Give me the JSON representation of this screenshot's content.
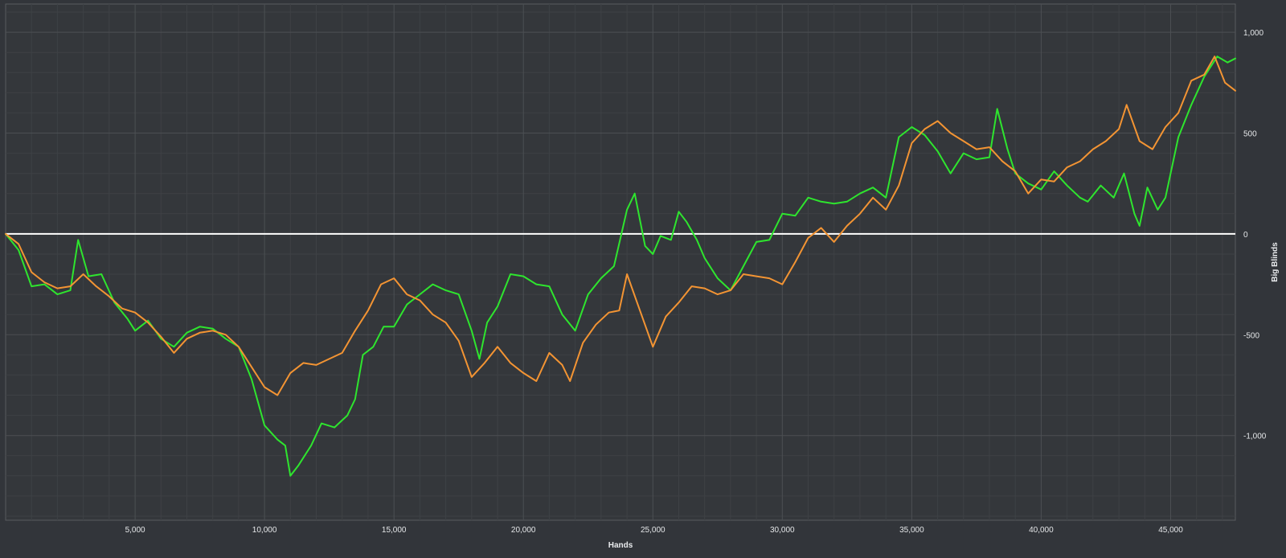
{
  "chart_data": {
    "type": "line",
    "title": "",
    "xlabel": "Hands",
    "ylabel": "Big Blinds",
    "xlim": [
      0,
      47500
    ],
    "ylim": [
      -1420,
      1140
    ],
    "x_ticks": [
      5000,
      10000,
      15000,
      20000,
      25000,
      30000,
      35000,
      40000,
      45000
    ],
    "x_tick_labels": [
      "5,000",
      "10,000",
      "15,000",
      "20,000",
      "25,000",
      "30,000",
      "35,000",
      "40,000",
      "45,000"
    ],
    "y_ticks": [
      1000,
      500,
      0,
      -500,
      -1000
    ],
    "y_tick_labels": [
      "1,000",
      "500",
      "0",
      "-500",
      "-1,000"
    ],
    "grid": true,
    "zero_line": true,
    "legend": "none",
    "series": [
      {
        "color": "#2ee52e",
        "points": [
          [
            0,
            0
          ],
          [
            500,
            -80
          ],
          [
            1000,
            -260
          ],
          [
            1500,
            -250
          ],
          [
            2000,
            -300
          ],
          [
            2500,
            -280
          ],
          [
            2800,
            -30
          ],
          [
            3200,
            -210
          ],
          [
            3700,
            -200
          ],
          [
            4200,
            -340
          ],
          [
            4700,
            -420
          ],
          [
            5000,
            -480
          ],
          [
            5500,
            -430
          ],
          [
            6000,
            -520
          ],
          [
            6500,
            -560
          ],
          [
            7000,
            -490
          ],
          [
            7500,
            -460
          ],
          [
            8000,
            -470
          ],
          [
            8500,
            -520
          ],
          [
            9000,
            -560
          ],
          [
            9500,
            -720
          ],
          [
            10000,
            -950
          ],
          [
            10500,
            -1020
          ],
          [
            10800,
            -1050
          ],
          [
            11000,
            -1200
          ],
          [
            11300,
            -1150
          ],
          [
            11800,
            -1050
          ],
          [
            12200,
            -940
          ],
          [
            12700,
            -960
          ],
          [
            13200,
            -900
          ],
          [
            13500,
            -820
          ],
          [
            13800,
            -600
          ],
          [
            14200,
            -560
          ],
          [
            14600,
            -460
          ],
          [
            15000,
            -460
          ],
          [
            15500,
            -350
          ],
          [
            16000,
            -300
          ],
          [
            16500,
            -250
          ],
          [
            17000,
            -280
          ],
          [
            17500,
            -300
          ],
          [
            18000,
            -480
          ],
          [
            18300,
            -620
          ],
          [
            18600,
            -440
          ],
          [
            19000,
            -360
          ],
          [
            19500,
            -200
          ],
          [
            20000,
            -210
          ],
          [
            20500,
            -250
          ],
          [
            21000,
            -260
          ],
          [
            21500,
            -400
          ],
          [
            22000,
            -480
          ],
          [
            22500,
            -300
          ],
          [
            23000,
            -220
          ],
          [
            23500,
            -160
          ],
          [
            24000,
            120
          ],
          [
            24300,
            200
          ],
          [
            24700,
            -60
          ],
          [
            25000,
            -100
          ],
          [
            25300,
            -10
          ],
          [
            25700,
            -30
          ],
          [
            26000,
            110
          ],
          [
            26300,
            60
          ],
          [
            26700,
            -30
          ],
          [
            27000,
            -120
          ],
          [
            27500,
            -220
          ],
          [
            28000,
            -280
          ],
          [
            28500,
            -160
          ],
          [
            29000,
            -40
          ],
          [
            29500,
            -30
          ],
          [
            30000,
            100
          ],
          [
            30500,
            90
          ],
          [
            31000,
            180
          ],
          [
            31500,
            160
          ],
          [
            32000,
            150
          ],
          [
            32500,
            160
          ],
          [
            33000,
            200
          ],
          [
            33500,
            230
          ],
          [
            34000,
            180
          ],
          [
            34500,
            480
          ],
          [
            35000,
            530
          ],
          [
            35500,
            490
          ],
          [
            36000,
            410
          ],
          [
            36500,
            300
          ],
          [
            37000,
            400
          ],
          [
            37500,
            370
          ],
          [
            38000,
            380
          ],
          [
            38300,
            620
          ],
          [
            38700,
            420
          ],
          [
            39000,
            300
          ],
          [
            39500,
            250
          ],
          [
            40000,
            220
          ],
          [
            40500,
            310
          ],
          [
            41000,
            240
          ],
          [
            41500,
            180
          ],
          [
            41800,
            160
          ],
          [
            42300,
            240
          ],
          [
            42800,
            180
          ],
          [
            43200,
            300
          ],
          [
            43600,
            100
          ],
          [
            43800,
            40
          ],
          [
            44100,
            230
          ],
          [
            44500,
            120
          ],
          [
            44800,
            180
          ],
          [
            45300,
            480
          ],
          [
            45800,
            640
          ],
          [
            46300,
            780
          ],
          [
            46800,
            880
          ],
          [
            47200,
            850
          ],
          [
            47500,
            870
          ]
        ]
      },
      {
        "color": "#f39433",
        "points": [
          [
            0,
            0
          ],
          [
            500,
            -50
          ],
          [
            1000,
            -190
          ],
          [
            1500,
            -240
          ],
          [
            2000,
            -270
          ],
          [
            2500,
            -260
          ],
          [
            3000,
            -200
          ],
          [
            3500,
            -260
          ],
          [
            4000,
            -310
          ],
          [
            4500,
            -370
          ],
          [
            5000,
            -390
          ],
          [
            5500,
            -440
          ],
          [
            6000,
            -510
          ],
          [
            6500,
            -590
          ],
          [
            7000,
            -520
          ],
          [
            7500,
            -490
          ],
          [
            8000,
            -480
          ],
          [
            8500,
            -500
          ],
          [
            9000,
            -560
          ],
          [
            9500,
            -660
          ],
          [
            10000,
            -760
          ],
          [
            10500,
            -800
          ],
          [
            11000,
            -690
          ],
          [
            11500,
            -640
          ],
          [
            12000,
            -650
          ],
          [
            12500,
            -620
          ],
          [
            13000,
            -590
          ],
          [
            13500,
            -480
          ],
          [
            14000,
            -380
          ],
          [
            14500,
            -250
          ],
          [
            15000,
            -220
          ],
          [
            15500,
            -300
          ],
          [
            16000,
            -330
          ],
          [
            16500,
            -400
          ],
          [
            17000,
            -440
          ],
          [
            17500,
            -530
          ],
          [
            18000,
            -710
          ],
          [
            18500,
            -640
          ],
          [
            19000,
            -560
          ],
          [
            19500,
            -640
          ],
          [
            20000,
            -690
          ],
          [
            20500,
            -730
          ],
          [
            21000,
            -590
          ],
          [
            21500,
            -650
          ],
          [
            21800,
            -730
          ],
          [
            22300,
            -540
          ],
          [
            22800,
            -450
          ],
          [
            23300,
            -390
          ],
          [
            23700,
            -380
          ],
          [
            24000,
            -200
          ],
          [
            24500,
            -380
          ],
          [
            25000,
            -560
          ],
          [
            25500,
            -410
          ],
          [
            26000,
            -340
          ],
          [
            26500,
            -260
          ],
          [
            27000,
            -270
          ],
          [
            27500,
            -300
          ],
          [
            28000,
            -280
          ],
          [
            28500,
            -200
          ],
          [
            29000,
            -210
          ],
          [
            29500,
            -220
          ],
          [
            30000,
            -250
          ],
          [
            30500,
            -140
          ],
          [
            31000,
            -20
          ],
          [
            31500,
            30
          ],
          [
            32000,
            -40
          ],
          [
            32500,
            40
          ],
          [
            33000,
            100
          ],
          [
            33500,
            180
          ],
          [
            34000,
            120
          ],
          [
            34500,
            240
          ],
          [
            35000,
            450
          ],
          [
            35500,
            520
          ],
          [
            36000,
            560
          ],
          [
            36500,
            500
          ],
          [
            37000,
            460
          ],
          [
            37500,
            420
          ],
          [
            38000,
            430
          ],
          [
            38500,
            360
          ],
          [
            39000,
            310
          ],
          [
            39500,
            200
          ],
          [
            40000,
            270
          ],
          [
            40500,
            260
          ],
          [
            41000,
            330
          ],
          [
            41500,
            360
          ],
          [
            42000,
            420
          ],
          [
            42500,
            460
          ],
          [
            43000,
            520
          ],
          [
            43300,
            640
          ],
          [
            43800,
            460
          ],
          [
            44300,
            420
          ],
          [
            44800,
            530
          ],
          [
            45300,
            600
          ],
          [
            45800,
            760
          ],
          [
            46300,
            790
          ],
          [
            46700,
            880
          ],
          [
            47100,
            750
          ],
          [
            47500,
            710
          ]
        ]
      }
    ]
  }
}
